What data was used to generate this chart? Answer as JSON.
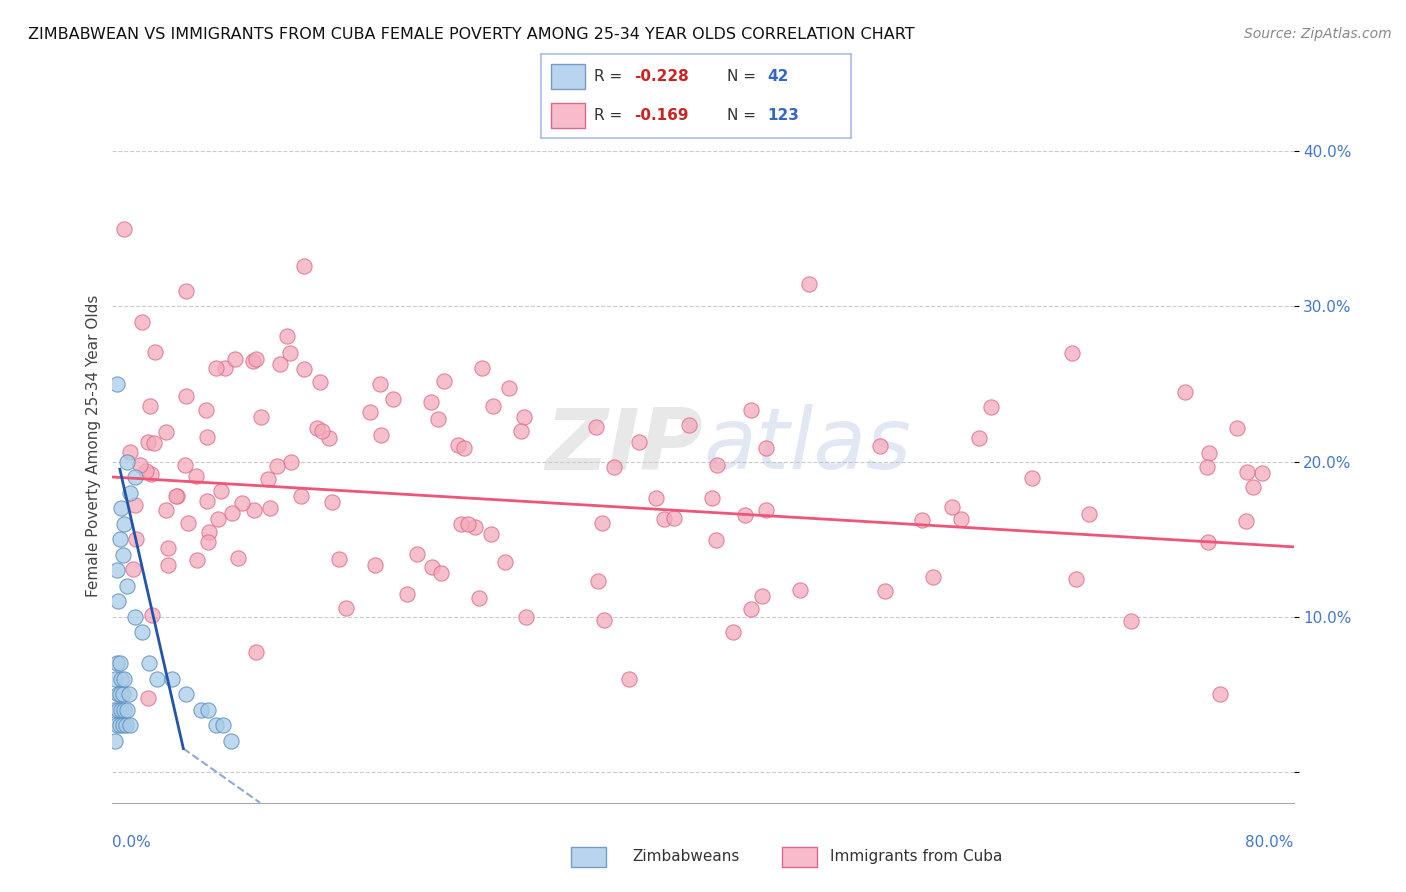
{
  "title": "ZIMBABWEAN VS IMMIGRANTS FROM CUBA FEMALE POVERTY AMONG 25-34 YEAR OLDS CORRELATION CHART",
  "source": "Source: ZipAtlas.com",
  "ylabel": "Female Poverty Among 25-34 Year Olds",
  "xlim": [
    0,
    0.8
  ],
  "ylim": [
    -0.02,
    0.44
  ],
  "yticks": [
    0.0,
    0.1,
    0.2,
    0.3,
    0.4
  ],
  "ytick_labels": [
    "",
    "10.0%",
    "20.0%",
    "30.0%",
    "40.0%"
  ],
  "xtick_labels": [
    "0.0%",
    "80.0%"
  ],
  "watermark_zip": "ZIP",
  "watermark_atlas": "atlas",
  "zim_scatter_color": "#a8cce8",
  "zim_edge_color": "#5588bb",
  "cuba_scatter_color": "#f4aabb",
  "cuba_edge_color": "#dd6688",
  "zim_line_color": "#2255aa",
  "cuba_line_color": "#ee5577",
  "legend_box_color": "#aabbdd",
  "background_color": "#ffffff",
  "grid_color": "#cccccc"
}
